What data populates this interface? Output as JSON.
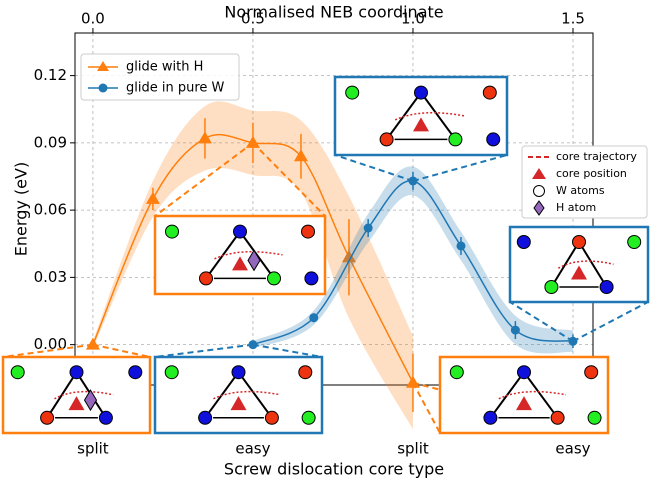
{
  "chart_data": {
    "type": "line",
    "xlabel_top": "Normalised NEB coordinate",
    "xlabel": "Screw dislocation core type",
    "ylabel": "Energy (eV)",
    "xlim": [
      -0.056,
      1.5625
    ],
    "ylim": [
      -0.018,
      0.139
    ],
    "xticks": [
      {
        "value": 0,
        "label": "0.0"
      },
      0.5,
      {
        "value": 1,
        "label": "1.0"
      },
      1.5
    ],
    "bottom_xticks": [
      {
        "value": 0,
        "label": "split"
      },
      {
        "value": 0.5,
        "label": "easy"
      },
      {
        "value": 1,
        "label": "split"
      },
      {
        "value": 1.5,
        "label": "easy"
      }
    ],
    "yticks": [
      {
        "value": 0,
        "label": "0.00"
      },
      0.03,
      0.06,
      0.09,
      0.12
    ],
    "grid": true,
    "legend": "upper left",
    "series": [
      {
        "name": "glide with H",
        "color": "#ff7f0e",
        "marker": "triangle",
        "x": [
          0,
          0.1875,
          0.35,
          0.5,
          0.65,
          0.8,
          1.0
        ],
        "values": [
          0.0,
          0.065,
          0.092,
          0.09,
          0.084,
          0.039,
          -0.017
        ],
        "errors": [
          0.001,
          0.005,
          0.009,
          0.009,
          0.01,
          0.017,
          0.013
        ]
      },
      {
        "name": "glide in pure W",
        "color": "#1f77b4",
        "marker": "circle",
        "x": [
          0.5,
          0.69,
          0.86,
          1.0,
          1.15,
          1.32,
          1.5
        ],
        "values": [
          0.0,
          0.012,
          0.052,
          0.073,
          0.044,
          0.0065,
          0.0015
        ],
        "errors": [
          0.001,
          0.002,
          0.004,
          0.004,
          0.004,
          0.004,
          0.003
        ]
      }
    ],
    "inset_legend": [
      "core trajectory",
      "core position",
      "W atoms",
      "H atom"
    ]
  }
}
